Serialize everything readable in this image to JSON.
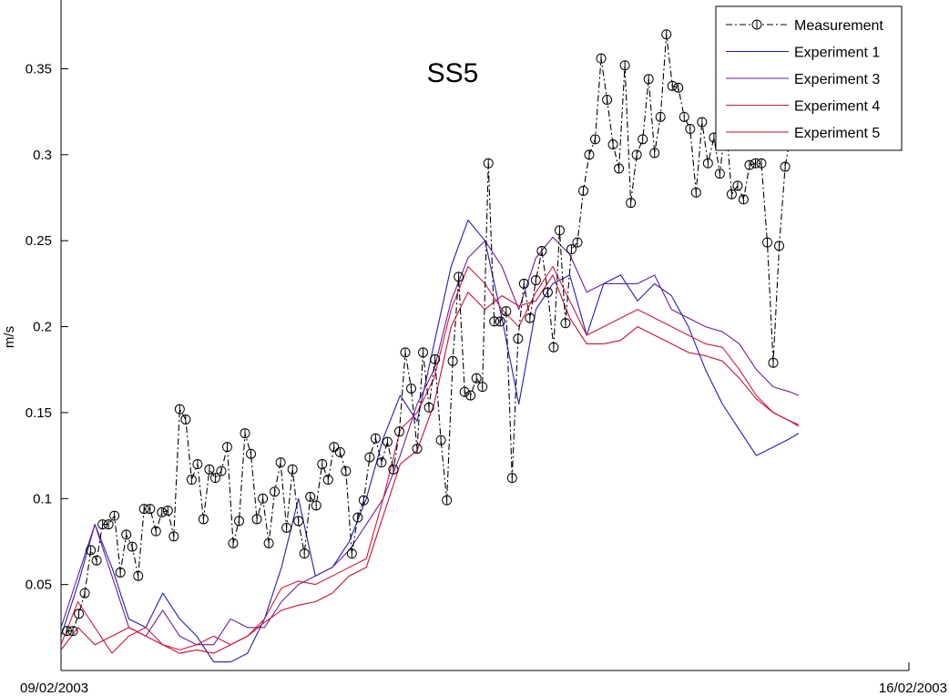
{
  "chart_data": {
    "type": "line",
    "title": "SS5",
    "ylabel": "m/s",
    "xlabel": "",
    "x_tick_labels": [
      "09/02/2003",
      "16/02/2003"
    ],
    "ylim": [
      0,
      0.39
    ],
    "y_ticks": [
      0.05,
      0.1,
      0.15,
      0.2,
      0.25,
      0.3,
      0.35
    ],
    "grid": false,
    "legend_position": "top-right",
    "series": [
      {
        "name": "Measurement",
        "color": "#000000",
        "style": "dash-dot-circle",
        "x": [
          0.007,
          0.014,
          0.021,
          0.028,
          0.035,
          0.042,
          0.049,
          0.056,
          0.063,
          0.07,
          0.077,
          0.084,
          0.091,
          0.098,
          0.105,
          0.112,
          0.119,
          0.126,
          0.133,
          0.14,
          0.147,
          0.154,
          0.161,
          0.168,
          0.175,
          0.182,
          0.189,
          0.196,
          0.203,
          0.21,
          0.217,
          0.224,
          0.231,
          0.238,
          0.245,
          0.252,
          0.259,
          0.266,
          0.273,
          0.28,
          0.287,
          0.294,
          0.301,
          0.308,
          0.315,
          0.322,
          0.329,
          0.336,
          0.343,
          0.35,
          0.357,
          0.364,
          0.371,
          0.378,
          0.385,
          0.392,
          0.399,
          0.406,
          0.413,
          0.42,
          0.427,
          0.434,
          0.441,
          0.448,
          0.455,
          0.462,
          0.469,
          0.476,
          0.483,
          0.49,
          0.497,
          0.504,
          0.511,
          0.518,
          0.525,
          0.532,
          0.539,
          0.546,
          0.553,
          0.56,
          0.567,
          0.574,
          0.581,
          0.588,
          0.595,
          0.602,
          0.609,
          0.616,
          0.623,
          0.63,
          0.637,
          0.644,
          0.651,
          0.658,
          0.665,
          0.672,
          0.679,
          0.686,
          0.693,
          0.7,
          0.707,
          0.714,
          0.721,
          0.728,
          0.735,
          0.742,
          0.749,
          0.756,
          0.763,
          0.77,
          0.777,
          0.784,
          0.791,
          0.798,
          0.805,
          0.812,
          0.819,
          0.826,
          0.833,
          0.84,
          0.847,
          0.854,
          0.861
        ],
        "values": [
          0.023,
          0.023,
          0.033,
          0.045,
          0.07,
          0.064,
          0.085,
          0.085,
          0.09,
          0.057,
          0.079,
          0.072,
          0.055,
          0.094,
          0.094,
          0.081,
          0.092,
          0.093,
          0.078,
          0.152,
          0.146,
          0.111,
          0.12,
          0.088,
          0.117,
          0.112,
          0.116,
          0.13,
          0.074,
          0.087,
          0.138,
          0.126,
          0.088,
          0.1,
          0.074,
          0.104,
          0.121,
          0.083,
          0.117,
          0.087,
          0.068,
          0.101,
          0.096,
          0.12,
          0.111,
          0.13,
          0.127,
          0.116,
          0.068,
          0.089,
          0.099,
          0.124,
          0.135,
          0.121,
          0.133,
          0.117,
          0.139,
          0.185,
          0.164,
          0.129,
          0.185,
          0.153,
          0.181,
          0.134,
          0.099,
          0.18,
          0.229,
          0.162,
          0.16,
          0.17,
          0.165,
          0.295,
          0.203,
          0.203,
          0.209,
          0.112,
          0.193,
          0.225,
          0.205,
          0.227,
          0.244,
          0.22,
          0.188,
          0.256,
          0.202,
          0.245,
          0.249,
          0.279,
          0.3,
          0.309,
          0.356,
          0.332,
          0.306,
          0.292,
          0.352,
          0.272,
          0.3,
          0.309,
          0.344,
          0.301,
          0.322,
          0.37,
          0.34,
          0.339,
          0.322,
          0.315,
          0.278,
          0.319,
          0.295,
          0.31,
          0.289,
          0.32,
          0.277,
          0.282,
          0.274,
          0.294,
          0.295,
          0.295,
          0.249,
          0.179,
          0.247,
          0.293,
          0.313
        ]
      },
      {
        "name": "Experiment 1",
        "color": "#1f1fb4",
        "style": "solid",
        "x": [
          0,
          0.02,
          0.04,
          0.06,
          0.08,
          0.1,
          0.12,
          0.14,
          0.16,
          0.18,
          0.2,
          0.22,
          0.24,
          0.26,
          0.28,
          0.3,
          0.32,
          0.34,
          0.36,
          0.38,
          0.4,
          0.42,
          0.44,
          0.46,
          0.48,
          0.5,
          0.52,
          0.54,
          0.56,
          0.58,
          0.6,
          0.62,
          0.64,
          0.66,
          0.68,
          0.7,
          0.72,
          0.74,
          0.76,
          0.78,
          0.8,
          0.82,
          0.84,
          0.86,
          0.87
        ],
        "values": [
          0.02,
          0.05,
          0.085,
          0.06,
          0.03,
          0.025,
          0.045,
          0.03,
          0.02,
          0.005,
          0.005,
          0.01,
          0.03,
          0.06,
          0.1,
          0.055,
          0.06,
          0.075,
          0.1,
          0.135,
          0.16,
          0.145,
          0.19,
          0.235,
          0.262,
          0.25,
          0.205,
          0.155,
          0.21,
          0.225,
          0.23,
          0.195,
          0.225,
          0.23,
          0.215,
          0.225,
          0.218,
          0.2,
          0.175,
          0.155,
          0.14,
          0.125,
          0.13,
          0.135,
          0.138
        ]
      },
      {
        "name": "Experiment 3",
        "color": "#6a1f9e",
        "style": "solid",
        "x": [
          0,
          0.02,
          0.04,
          0.06,
          0.08,
          0.1,
          0.12,
          0.14,
          0.16,
          0.18,
          0.2,
          0.22,
          0.24,
          0.26,
          0.28,
          0.3,
          0.32,
          0.34,
          0.36,
          0.38,
          0.4,
          0.42,
          0.44,
          0.46,
          0.48,
          0.5,
          0.52,
          0.54,
          0.56,
          0.58,
          0.6,
          0.62,
          0.64,
          0.66,
          0.68,
          0.7,
          0.72,
          0.74,
          0.76,
          0.78,
          0.8,
          0.82,
          0.84,
          0.86,
          0.87
        ],
        "values": [
          0.025,
          0.055,
          0.085,
          0.055,
          0.025,
          0.02,
          0.035,
          0.02,
          0.015,
          0.015,
          0.03,
          0.025,
          0.025,
          0.04,
          0.05,
          0.055,
          0.06,
          0.07,
          0.085,
          0.1,
          0.125,
          0.155,
          0.175,
          0.215,
          0.24,
          0.25,
          0.235,
          0.21,
          0.24,
          0.252,
          0.242,
          0.22,
          0.225,
          0.225,
          0.225,
          0.23,
          0.21,
          0.205,
          0.2,
          0.197,
          0.19,
          0.175,
          0.165,
          0.162,
          0.16
        ]
      },
      {
        "name": "Experiment 4",
        "color": "#d21a3a",
        "style": "solid",
        "x": [
          0,
          0.02,
          0.04,
          0.06,
          0.08,
          0.1,
          0.12,
          0.14,
          0.16,
          0.18,
          0.2,
          0.22,
          0.24,
          0.26,
          0.28,
          0.3,
          0.32,
          0.34,
          0.36,
          0.38,
          0.4,
          0.42,
          0.44,
          0.46,
          0.48,
          0.5,
          0.52,
          0.54,
          0.56,
          0.58,
          0.6,
          0.62,
          0.64,
          0.66,
          0.68,
          0.7,
          0.72,
          0.74,
          0.76,
          0.78,
          0.8,
          0.82,
          0.84,
          0.86,
          0.87
        ],
        "values": [
          0.015,
          0.04,
          0.025,
          0.01,
          0.02,
          0.025,
          0.015,
          0.012,
          0.015,
          0.02,
          0.015,
          0.02,
          0.03,
          0.048,
          0.052,
          0.05,
          0.055,
          0.06,
          0.065,
          0.1,
          0.14,
          0.15,
          0.17,
          0.21,
          0.235,
          0.225,
          0.21,
          0.2,
          0.22,
          0.235,
          0.215,
          0.195,
          0.2,
          0.205,
          0.21,
          0.205,
          0.2,
          0.195,
          0.19,
          0.188,
          0.175,
          0.16,
          0.15,
          0.145,
          0.143
        ]
      },
      {
        "name": "Experiment 5",
        "color": "#c8102e",
        "style": "solid",
        "x": [
          0,
          0.02,
          0.04,
          0.06,
          0.08,
          0.1,
          0.12,
          0.14,
          0.16,
          0.18,
          0.2,
          0.22,
          0.24,
          0.26,
          0.28,
          0.3,
          0.32,
          0.34,
          0.36,
          0.38,
          0.4,
          0.42,
          0.44,
          0.46,
          0.48,
          0.5,
          0.52,
          0.54,
          0.56,
          0.58,
          0.6,
          0.62,
          0.64,
          0.66,
          0.68,
          0.7,
          0.72,
          0.74,
          0.76,
          0.78,
          0.8,
          0.82,
          0.84,
          0.86,
          0.87
        ],
        "values": [
          0.012,
          0.025,
          0.015,
          0.02,
          0.025,
          0.02,
          0.015,
          0.01,
          0.012,
          0.01,
          0.015,
          0.02,
          0.028,
          0.035,
          0.038,
          0.04,
          0.045,
          0.055,
          0.06,
          0.09,
          0.12,
          0.128,
          0.155,
          0.2,
          0.22,
          0.21,
          0.218,
          0.212,
          0.215,
          0.23,
          0.205,
          0.19,
          0.19,
          0.192,
          0.2,
          0.195,
          0.19,
          0.185,
          0.183,
          0.18,
          0.17,
          0.158,
          0.15,
          0.145,
          0.142
        ]
      }
    ]
  }
}
